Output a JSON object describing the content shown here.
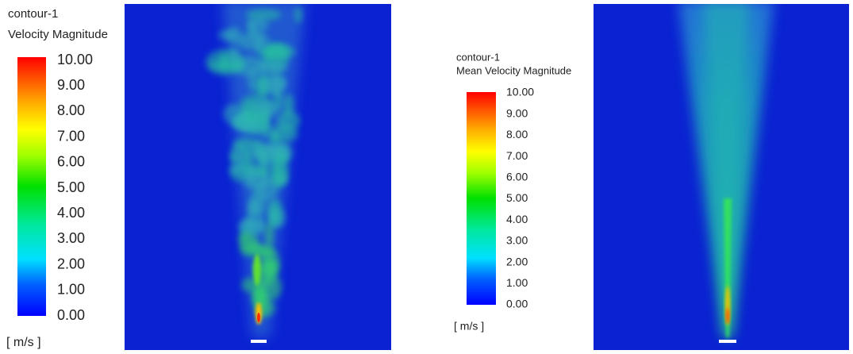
{
  "left": {
    "title": "contour-1",
    "variable": "Velocity Magnitude",
    "colorbar_labels": [
      "10.00",
      "9.00",
      "8.00",
      "7.00",
      "6.00",
      "5.00",
      "4.00",
      "3.00",
      "2.00",
      "1.00",
      "0.00"
    ],
    "unit": "[ m/s ]"
  },
  "right": {
    "title": "contour-1",
    "variable": "Mean Velocity Magnitude",
    "colorbar_labels": [
      "10.00",
      "9.00",
      "8.00",
      "7.00",
      "6.00",
      "5.00",
      "4.00",
      "3.00",
      "2.00",
      "1.00",
      "0.00"
    ],
    "unit": "[ m/s ]"
  }
}
